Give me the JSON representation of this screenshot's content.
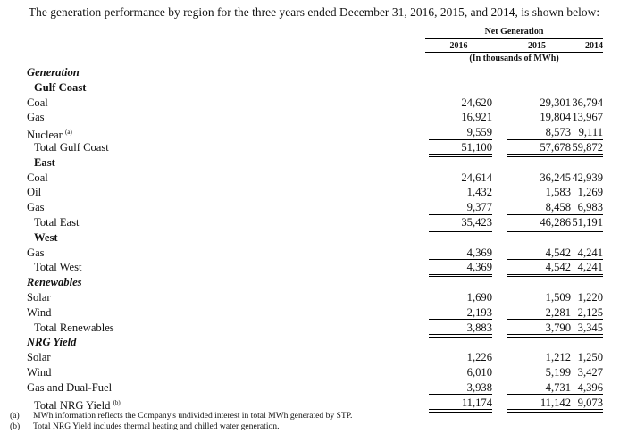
{
  "intro": "The generation performance by region for the three years ended December 31, 2016, 2015, and 2014, is shown below:",
  "header": {
    "group": "Net Generation",
    "years": [
      "2016",
      "2015",
      "2014"
    ],
    "units": "(In thousands of MWh)"
  },
  "rows": [
    {
      "label": "Generation",
      "style": "bi",
      "indent": 1
    },
    {
      "label": "Gulf Coast",
      "style": "b",
      "indent": 2
    },
    {
      "label": "Coal",
      "indent": 1,
      "values": [
        "24,620",
        "29,301",
        "36,794"
      ]
    },
    {
      "label": "Gas",
      "indent": 1,
      "values": [
        "16,921",
        "19,804",
        "13,967"
      ]
    },
    {
      "label": "Nuclear",
      "sup": "(a)",
      "indent": 1,
      "values": [
        "9,559",
        "8,573",
        "9,111"
      ],
      "line": "thin"
    },
    {
      "label": "Total Gulf Coast",
      "indent": 2,
      "values": [
        "51,100",
        "57,678",
        "59,872"
      ],
      "line": "double"
    },
    {
      "label": "East",
      "style": "b",
      "indent": 2
    },
    {
      "label": "Coal",
      "indent": 1,
      "values": [
        "24,614",
        "36,245",
        "42,939"
      ]
    },
    {
      "label": "Oil",
      "indent": 1,
      "values": [
        "1,432",
        "1,583",
        "1,269"
      ]
    },
    {
      "label": "Gas",
      "indent": 1,
      "values": [
        "9,377",
        "8,458",
        "6,983"
      ],
      "line": "thin"
    },
    {
      "label": "Total East",
      "indent": 2,
      "values": [
        "35,423",
        "46,286",
        "51,191"
      ],
      "line": "double"
    },
    {
      "label": "West",
      "style": "b",
      "indent": 2
    },
    {
      "label": "Gas",
      "indent": 1,
      "values": [
        "4,369",
        "4,542",
        "4,241"
      ],
      "line": "thin"
    },
    {
      "label": "Total West",
      "indent": 2,
      "values": [
        "4,369",
        "4,542",
        "4,241"
      ],
      "line": "double"
    },
    {
      "label": "Renewables",
      "style": "bi",
      "indent": 1
    },
    {
      "label": "Solar",
      "indent": 1,
      "values": [
        "1,690",
        "1,509",
        "1,220"
      ]
    },
    {
      "label": "Wind",
      "indent": 1,
      "values": [
        "2,193",
        "2,281",
        "2,125"
      ],
      "line": "thin"
    },
    {
      "label": "Total Renewables",
      "indent": 2,
      "values": [
        "3,883",
        "3,790",
        "3,345"
      ],
      "line": "double"
    },
    {
      "label": "NRG Yield",
      "style": "bi",
      "indent": 1
    },
    {
      "label": "Solar",
      "indent": 1,
      "values": [
        "1,226",
        "1,212",
        "1,250"
      ]
    },
    {
      "label": "Wind",
      "indent": 1,
      "values": [
        "6,010",
        "5,199",
        "3,427"
      ]
    },
    {
      "label": "Gas and Dual-Fuel",
      "indent": 1,
      "values": [
        "3,938",
        "4,731",
        "4,396"
      ],
      "line": "thin"
    },
    {
      "label": "Total NRG Yield",
      "sup": "(b)",
      "indent": 2,
      "values": [
        "11,174",
        "11,142",
        "9,073"
      ],
      "line": "double"
    }
  ],
  "footnotes": [
    {
      "mark": "(a)",
      "text": "MWh information reflects the Company's undivided interest in total MWh generated by STP."
    },
    {
      "mark": "(b)",
      "text": "Total NRG Yield includes thermal heating and chilled water generation."
    }
  ]
}
